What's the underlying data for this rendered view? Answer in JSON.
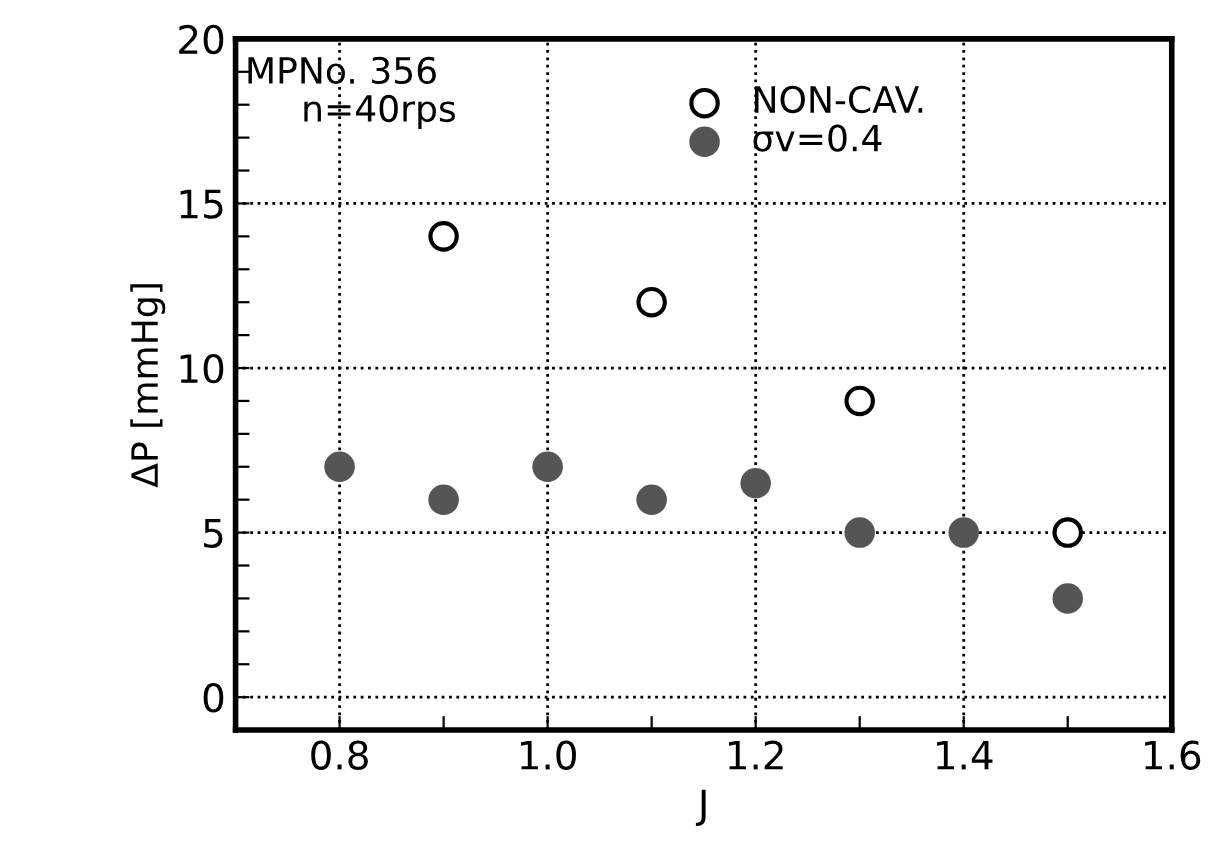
{
  "chart_data": {
    "type": "scatter",
    "xlabel": "J",
    "ylabel": "ΔP [mmHg]",
    "annotations": [
      "MPNo. 356",
      "n=40rps"
    ],
    "series": [
      {
        "name": "NON-CAV.",
        "color": "#ffffff",
        "x": [
          0.9,
          1.1,
          1.3,
          1.5
        ],
        "values": [
          14,
          12,
          9,
          5
        ]
      },
      {
        "name": "σv=0.4",
        "color": "#555555",
        "x": [
          0.8,
          0.9,
          1.0,
          1.1,
          1.2,
          1.3,
          1.4,
          1.5
        ],
        "values": [
          7,
          6,
          7,
          6,
          6.5,
          5,
          5,
          3
        ]
      }
    ],
    "xlim": [
      0.7,
      1.6
    ],
    "ylim": [
      -1,
      20
    ],
    "xticks": [
      0.8,
      {
        "value": 0.9,
        "label": null
      },
      {
        "value": 1.0,
        "label": "1.0"
      },
      {
        "value": 1.1,
        "label": null
      },
      1.2,
      {
        "value": 1.3,
        "label": null
      },
      1.4,
      {
        "value": 1.5,
        "label": null
      },
      1.6
    ],
    "yticks": [
      0,
      {
        "value": 1,
        "label": null
      },
      {
        "value": 2,
        "label": null
      },
      {
        "value": 3,
        "label": null
      },
      {
        "value": 4,
        "label": null
      },
      5,
      {
        "value": 6,
        "label": null
      },
      {
        "value": 7,
        "label": null
      },
      {
        "value": 8,
        "label": null
      },
      {
        "value": 9,
        "label": null
      },
      10,
      {
        "value": 11,
        "label": null
      },
      {
        "value": 12,
        "label": null
      },
      {
        "value": 13,
        "label": null
      },
      {
        "value": 14,
        "label": null
      },
      15,
      {
        "value": 16,
        "label": null
      },
      {
        "value": 17,
        "label": null
      },
      {
        "value": 18,
        "label": null
      },
      {
        "value": 19,
        "label": null
      },
      20
    ],
    "grid": true,
    "legend": "top",
    "marker": "circle"
  }
}
